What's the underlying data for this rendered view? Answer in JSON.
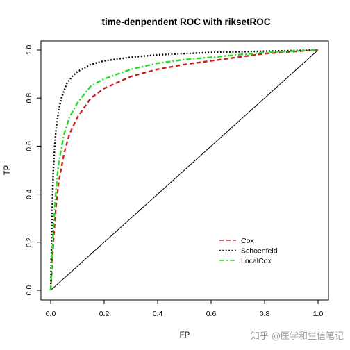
{
  "chart_data": {
    "type": "line",
    "title": "time-denpendent ROC with riksetROC",
    "xlabel": "FP",
    "ylabel": "TP",
    "xlim": [
      0,
      1
    ],
    "ylim": [
      0,
      1
    ],
    "xticks": [
      "0.0",
      "0.2",
      "0.4",
      "0.6",
      "0.8",
      "1.0"
    ],
    "yticks": [
      "0.0",
      "0.2",
      "0.4",
      "0.6",
      "0.8",
      "1.0"
    ],
    "grid": false,
    "legend_position": "bottom-right",
    "reference_line": {
      "x": [
        0,
        1
      ],
      "y": [
        0,
        1
      ],
      "color": "#000000"
    },
    "series": [
      {
        "name": "Cox",
        "color": "#cc2020",
        "dash": "dashed",
        "x": [
          0.0,
          0.005,
          0.01,
          0.02,
          0.03,
          0.05,
          0.07,
          0.1,
          0.15,
          0.2,
          0.3,
          0.4,
          0.5,
          0.6,
          0.7,
          0.8,
          0.9,
          1.0
        ],
        "y": [
          0.0,
          0.1,
          0.2,
          0.35,
          0.45,
          0.57,
          0.65,
          0.72,
          0.8,
          0.84,
          0.89,
          0.92,
          0.94,
          0.955,
          0.97,
          0.985,
          0.993,
          1.0
        ]
      },
      {
        "name": "Schoenfeld",
        "color": "#000000",
        "dash": "dotted",
        "x": [
          0.0,
          0.005,
          0.01,
          0.015,
          0.02,
          0.03,
          0.04,
          0.06,
          0.08,
          0.1,
          0.15,
          0.2,
          0.3,
          0.4,
          0.5,
          0.6,
          0.8,
          1.0
        ],
        "y": [
          0.0,
          0.3,
          0.5,
          0.6,
          0.67,
          0.75,
          0.8,
          0.86,
          0.89,
          0.91,
          0.94,
          0.955,
          0.97,
          0.98,
          0.985,
          0.99,
          0.995,
          1.0
        ]
      },
      {
        "name": "LocalCox",
        "color": "#22dd22",
        "dash": "dashdot",
        "x": [
          0.0,
          0.005,
          0.01,
          0.02,
          0.03,
          0.05,
          0.07,
          0.1,
          0.15,
          0.2,
          0.3,
          0.4,
          0.5,
          0.6,
          0.7,
          0.8,
          0.9,
          1.0
        ],
        "y": [
          0.0,
          0.12,
          0.25,
          0.42,
          0.53,
          0.65,
          0.72,
          0.78,
          0.85,
          0.88,
          0.92,
          0.945,
          0.96,
          0.97,
          0.98,
          0.99,
          0.995,
          1.0
        ]
      }
    ]
  },
  "watermark": "知乎 @医学和生信笔记"
}
